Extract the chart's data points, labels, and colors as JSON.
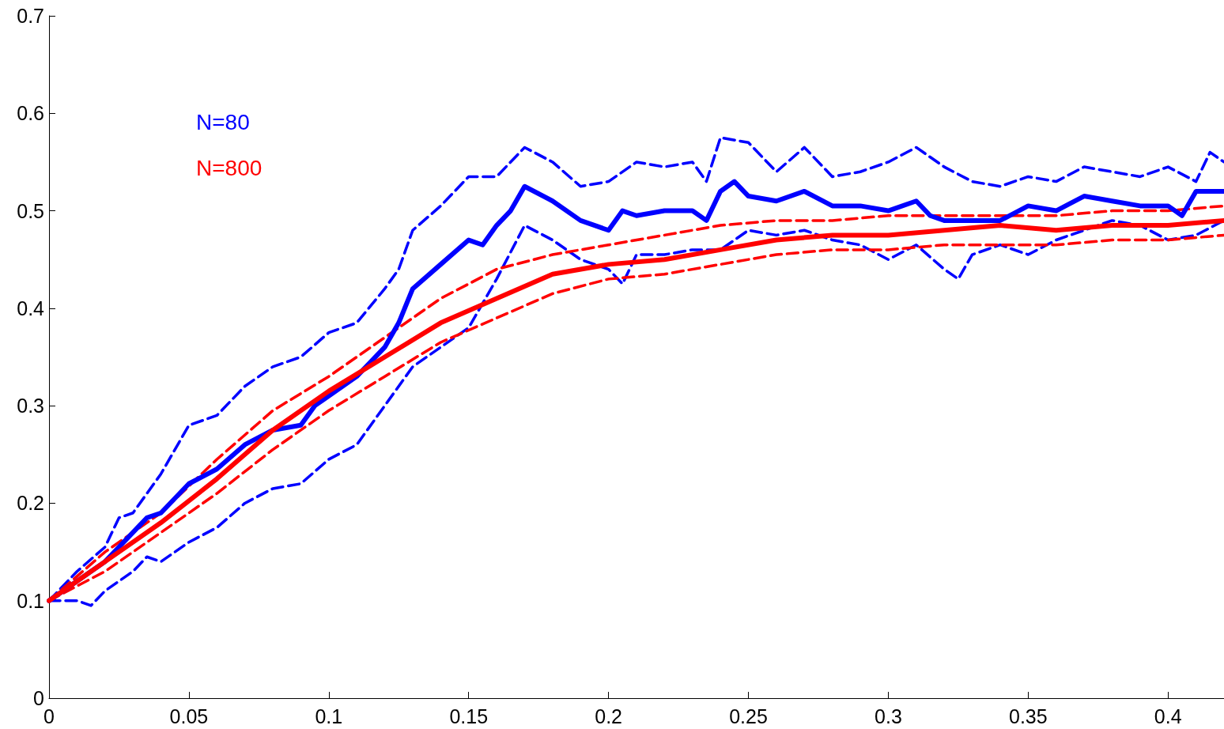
{
  "chart_data": {
    "type": "line",
    "xlim": [
      0,
      0.42
    ],
    "ylim": [
      0,
      0.7
    ],
    "xticks": [
      0,
      0.05,
      0.1,
      0.15,
      0.2,
      0.25,
      0.3,
      0.35,
      0.4
    ],
    "yticks": [
      0,
      0.1,
      0.2,
      0.3,
      0.4,
      0.5,
      0.6,
      0.7
    ],
    "grid": false,
    "legend": false,
    "marker": "none",
    "series": [
      {
        "name": "N=80",
        "color": "#0000ff",
        "line_style": "solid",
        "x": [
          0,
          0.01,
          0.02,
          0.03,
          0.035,
          0.04,
          0.05,
          0.06,
          0.07,
          0.08,
          0.09,
          0.095,
          0.1,
          0.11,
          0.12,
          0.125,
          0.13,
          0.14,
          0.15,
          0.155,
          0.16,
          0.165,
          0.17,
          0.18,
          0.19,
          0.2,
          0.205,
          0.21,
          0.22,
          0.23,
          0.235,
          0.24,
          0.245,
          0.25,
          0.26,
          0.27,
          0.28,
          0.29,
          0.3,
          0.31,
          0.315,
          0.32,
          0.33,
          0.34,
          0.35,
          0.36,
          0.37,
          0.38,
          0.39,
          0.4,
          0.405,
          0.41,
          0.42
        ],
        "values": [
          0.1,
          0.12,
          0.14,
          0.17,
          0.185,
          0.19,
          0.22,
          0.235,
          0.26,
          0.275,
          0.28,
          0.3,
          0.31,
          0.33,
          0.36,
          0.385,
          0.42,
          0.445,
          0.47,
          0.465,
          0.485,
          0.5,
          0.525,
          0.51,
          0.49,
          0.48,
          0.5,
          0.495,
          0.5,
          0.5,
          0.49,
          0.52,
          0.53,
          0.515,
          0.51,
          0.52,
          0.505,
          0.505,
          0.5,
          0.51,
          0.495,
          0.49,
          0.49,
          0.49,
          0.505,
          0.5,
          0.515,
          0.51,
          0.505,
          0.505,
          0.495,
          0.52,
          0.52
        ]
      },
      {
        "color": "#0000ff",
        "line_style": "dashed",
        "x": [
          0,
          0.01,
          0.02,
          0.025,
          0.03,
          0.04,
          0.05,
          0.06,
          0.07,
          0.08,
          0.09,
          0.1,
          0.11,
          0.12,
          0.125,
          0.13,
          0.14,
          0.15,
          0.16,
          0.17,
          0.18,
          0.19,
          0.2,
          0.21,
          0.22,
          0.23,
          0.235,
          0.24,
          0.25,
          0.26,
          0.27,
          0.28,
          0.29,
          0.3,
          0.31,
          0.32,
          0.33,
          0.34,
          0.35,
          0.36,
          0.37,
          0.38,
          0.39,
          0.4,
          0.41,
          0.415,
          0.42
        ],
        "values": [
          0.1,
          0.13,
          0.155,
          0.185,
          0.19,
          0.23,
          0.28,
          0.29,
          0.32,
          0.34,
          0.35,
          0.375,
          0.385,
          0.42,
          0.44,
          0.48,
          0.505,
          0.535,
          0.535,
          0.565,
          0.55,
          0.525,
          0.53,
          0.55,
          0.545,
          0.55,
          0.53,
          0.575,
          0.57,
          0.54,
          0.565,
          0.535,
          0.54,
          0.55,
          0.565,
          0.545,
          0.53,
          0.525,
          0.535,
          0.53,
          0.545,
          0.54,
          0.535,
          0.545,
          0.53,
          0.56,
          0.55
        ]
      },
      {
        "color": "#0000ff",
        "line_style": "dashed",
        "x": [
          0,
          0.01,
          0.015,
          0.02,
          0.03,
          0.035,
          0.04,
          0.05,
          0.06,
          0.07,
          0.08,
          0.09,
          0.1,
          0.11,
          0.12,
          0.13,
          0.14,
          0.15,
          0.16,
          0.17,
          0.18,
          0.19,
          0.2,
          0.205,
          0.21,
          0.22,
          0.23,
          0.24,
          0.25,
          0.26,
          0.27,
          0.28,
          0.29,
          0.3,
          0.31,
          0.32,
          0.325,
          0.33,
          0.34,
          0.35,
          0.36,
          0.37,
          0.38,
          0.39,
          0.4,
          0.41,
          0.42
        ],
        "values": [
          0.1,
          0.1,
          0.095,
          0.11,
          0.13,
          0.145,
          0.14,
          0.16,
          0.175,
          0.2,
          0.215,
          0.22,
          0.245,
          0.26,
          0.3,
          0.34,
          0.36,
          0.38,
          0.43,
          0.485,
          0.47,
          0.45,
          0.44,
          0.425,
          0.455,
          0.455,
          0.46,
          0.46,
          0.48,
          0.475,
          0.48,
          0.47,
          0.465,
          0.45,
          0.465,
          0.44,
          0.43,
          0.455,
          0.465,
          0.455,
          0.47,
          0.48,
          0.49,
          0.485,
          0.47,
          0.475,
          0.49
        ]
      },
      {
        "name": "N=800",
        "color": "#ff0000",
        "line_style": "solid",
        "x": [
          0,
          0.02,
          0.04,
          0.06,
          0.08,
          0.1,
          0.12,
          0.14,
          0.16,
          0.18,
          0.2,
          0.22,
          0.24,
          0.26,
          0.28,
          0.3,
          0.32,
          0.34,
          0.36,
          0.38,
          0.4,
          0.42
        ],
        "values": [
          0.1,
          0.14,
          0.18,
          0.225,
          0.275,
          0.315,
          0.35,
          0.385,
          0.41,
          0.435,
          0.445,
          0.45,
          0.46,
          0.47,
          0.475,
          0.475,
          0.48,
          0.485,
          0.48,
          0.485,
          0.485,
          0.49
        ]
      },
      {
        "color": "#ff0000",
        "line_style": "dashed",
        "x": [
          0,
          0.02,
          0.04,
          0.06,
          0.08,
          0.1,
          0.12,
          0.14,
          0.16,
          0.18,
          0.2,
          0.22,
          0.24,
          0.26,
          0.28,
          0.3,
          0.32,
          0.34,
          0.36,
          0.38,
          0.4,
          0.42
        ],
        "values": [
          0.1,
          0.15,
          0.19,
          0.245,
          0.295,
          0.33,
          0.37,
          0.41,
          0.44,
          0.455,
          0.465,
          0.475,
          0.485,
          0.49,
          0.49,
          0.495,
          0.495,
          0.495,
          0.495,
          0.5,
          0.5,
          0.505
        ]
      },
      {
        "color": "#ff0000",
        "line_style": "dashed",
        "x": [
          0,
          0.02,
          0.04,
          0.06,
          0.08,
          0.1,
          0.12,
          0.14,
          0.16,
          0.18,
          0.2,
          0.22,
          0.24,
          0.26,
          0.28,
          0.3,
          0.32,
          0.34,
          0.36,
          0.38,
          0.4,
          0.42
        ],
        "values": [
          0.1,
          0.13,
          0.17,
          0.21,
          0.255,
          0.295,
          0.33,
          0.365,
          0.39,
          0.415,
          0.43,
          0.435,
          0.445,
          0.455,
          0.46,
          0.46,
          0.465,
          0.465,
          0.465,
          0.47,
          0.47,
          0.475
        ]
      }
    ]
  }
}
